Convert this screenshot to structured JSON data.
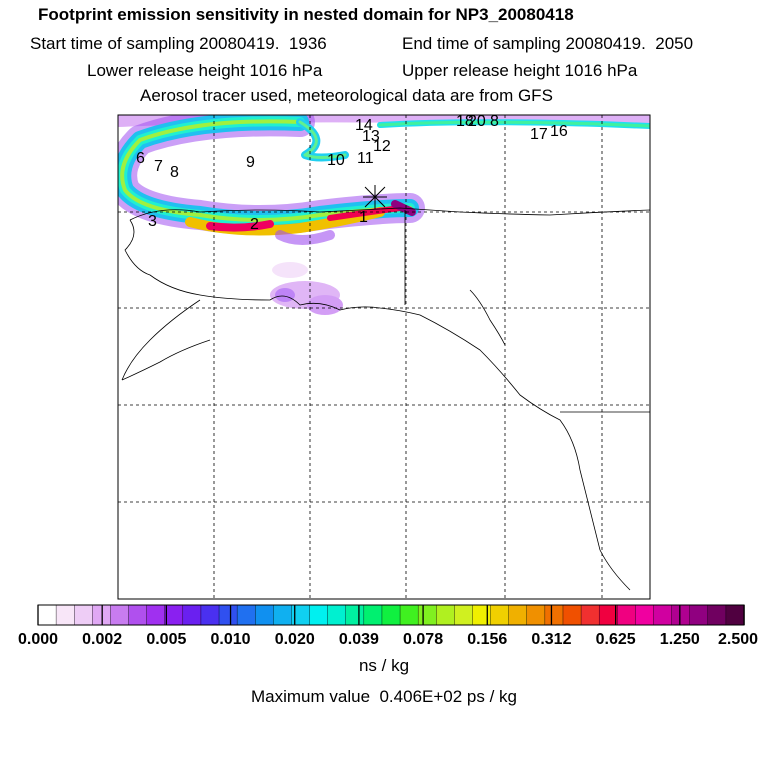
{
  "header": {
    "title": "Footprint emission sensitivity in nested domain for NP3_20080418",
    "start": "Start time of sampling 20080419.  1936",
    "end": "End time of sampling 20080419.  2050",
    "lower": "Lower release height 1016 hPa",
    "upper": "Upper release height 1016 hPa",
    "tracer": "Aerosol tracer used, meteorological data are from GFS"
  },
  "map": {
    "trajectory_labels": [
      "1",
      "2",
      "3",
      "6",
      "7",
      "8",
      "9",
      "10",
      "11",
      "12",
      "13",
      "14",
      "16",
      "17",
      "18",
      "20",
      "8"
    ]
  },
  "colorbar": {
    "tick_labels": [
      "0.000",
      "0.002",
      "0.005",
      "0.010",
      "0.020",
      "0.039",
      "0.078",
      "0.156",
      "0.312",
      "0.625",
      "1.250",
      "2.500"
    ],
    "colors": [
      "#ffffff",
      "#f8e6f8",
      "#eecdf6",
      "#e0a8f4",
      "#c87cf0",
      "#b050ee",
      "#a030f0",
      "#8a20f0",
      "#6a20f0",
      "#4a30f0",
      "#3050f0",
      "#2070f0",
      "#1090f0",
      "#10b0f0",
      "#10d0f0",
      "#00f0f0",
      "#00f0d0",
      "#00f0a0",
      "#00f070",
      "#10f040",
      "#40f020",
      "#80f020",
      "#b0f020",
      "#d0f020",
      "#f0f000",
      "#f0d000",
      "#f0b000",
      "#f09000",
      "#f07000",
      "#f05000",
      "#f03030",
      "#f00040",
      "#f00080",
      "#f000a0",
      "#d000a0",
      "#b00090",
      "#900080",
      "#700060",
      "#500040"
    ],
    "unit": "ns / kg",
    "max_value": "Maximum value  0.406E+02 ps / kg"
  }
}
